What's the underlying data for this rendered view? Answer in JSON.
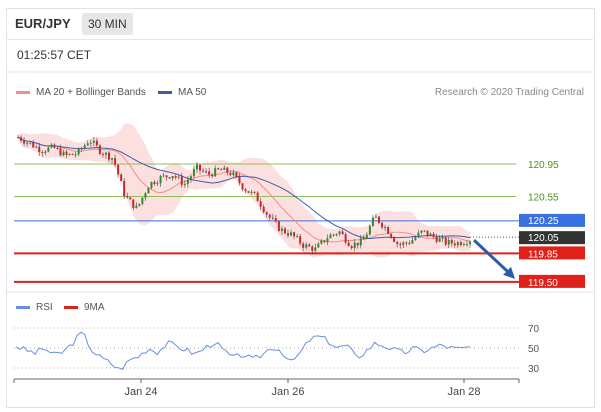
{
  "header": {
    "pair": "EUR/JPY",
    "timeframe": "30 MIN",
    "time": "01:25:57 CET",
    "credit": "Research © 2020 Trading Central"
  },
  "legend": {
    "ma20": "MA 20 + Bollinger Bands",
    "ma50": "MA 50",
    "rsi": "RSI",
    "ma9": "9MA"
  },
  "colors": {
    "candle_up": "#2e8b2e",
    "candle_down": "#c62828",
    "ma20": "#ef8f88",
    "bollinger_fill": "#fbd5d5",
    "ma50": "#3b5ea8",
    "green_level": "#8fbf5a",
    "blue_level": "#3a6fe0",
    "red_level": "#e0201a",
    "current_price": "#333333",
    "rsi_line": "#6a8fe0"
  },
  "chart_data": [
    {
      "type": "candlestick",
      "title": "EUR/JPY",
      "timeframe": "30 MIN",
      "x_tick_labels": [
        "Jan 24",
        "Jan 26",
        "Jan 28"
      ],
      "ylim": [
        119.4,
        121.7
      ],
      "close_path": [
        121.28,
        121.2,
        121.12,
        121.15,
        121.05,
        121.08,
        121.25,
        121.1,
        121.02,
        120.55,
        120.4,
        120.7,
        120.78,
        120.82,
        120.7,
        120.9,
        120.82,
        120.88,
        120.83,
        120.65,
        120.55,
        120.32,
        120.15,
        120.08,
        119.95,
        119.9,
        120.05,
        120.12,
        119.95,
        120.0,
        120.3,
        120.15,
        119.95,
        120.0,
        120.12,
        120.05,
        119.98,
        119.98,
        120.02
      ],
      "levels": [
        {
          "label": "120.95",
          "value": 120.95,
          "kind": "resistance"
        },
        {
          "label": "120.55",
          "value": 120.55,
          "kind": "resistance"
        },
        {
          "label": "120.25",
          "value": 120.25,
          "kind": "pivot"
        },
        {
          "label": "120.05",
          "value": 120.05,
          "kind": "current"
        },
        {
          "label": "119.85",
          "value": 119.85,
          "kind": "support"
        },
        {
          "label": "119.50",
          "value": 119.5,
          "kind": "support"
        }
      ],
      "forecast": {
        "from": 120.05,
        "to": 119.5,
        "direction": "down"
      },
      "indicators": [
        "MA 20 + Bollinger Bands",
        "MA 50"
      ]
    },
    {
      "type": "line",
      "series": [
        {
          "name": "RSI"
        },
        {
          "name": "9MA"
        }
      ],
      "ylim": [
        20,
        80
      ],
      "y_ticks": [
        70,
        50,
        30
      ],
      "rsi_path": [
        52,
        48,
        45,
        50,
        43,
        46,
        55,
        66,
        48,
        40,
        35,
        28,
        38,
        42,
        50,
        46,
        55,
        52,
        48,
        44,
        50,
        56,
        47,
        40,
        44,
        38,
        43,
        51,
        48,
        35,
        44,
        58,
        62,
        57,
        50,
        53,
        40,
        47,
        55,
        52,
        48,
        45,
        50,
        47,
        50,
        53,
        50,
        49,
        51
      ]
    }
  ]
}
